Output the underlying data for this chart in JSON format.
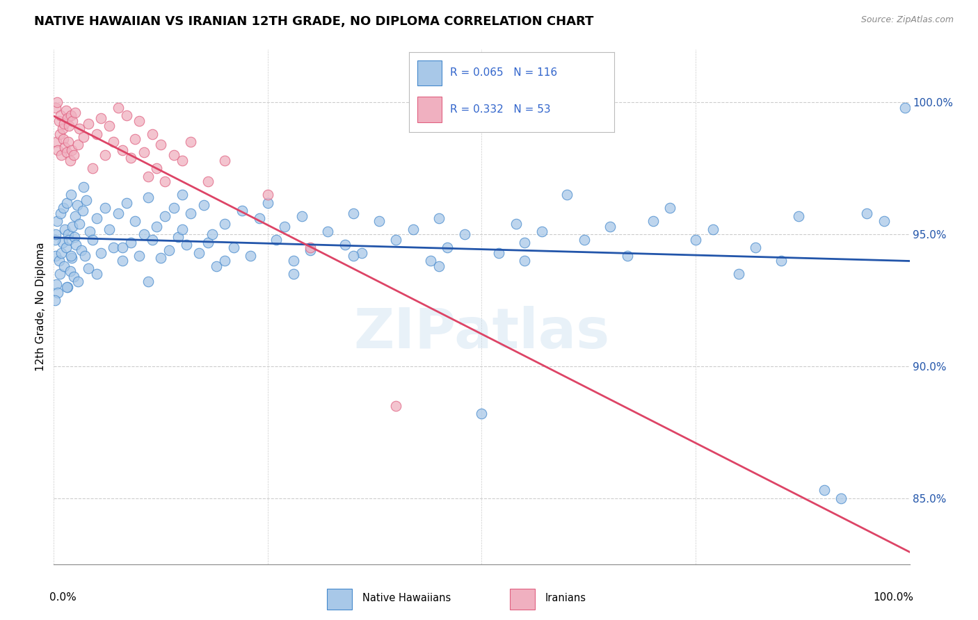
{
  "title": "NATIVE HAWAIIAN VS IRANIAN 12TH GRADE, NO DIPLOMA CORRELATION CHART",
  "source": "Source: ZipAtlas.com",
  "ylabel": "12th Grade, No Diploma",
  "watermark": "ZIPatlas",
  "blue_label": "Native Hawaiians",
  "pink_label": "Iranians",
  "blue_R": 0.065,
  "blue_N": 116,
  "pink_R": 0.332,
  "pink_N": 53,
  "blue_color": "#a8c8e8",
  "pink_color": "#f0b0c0",
  "blue_edge_color": "#4488cc",
  "pink_edge_color": "#e06080",
  "blue_line_color": "#2255aa",
  "pink_line_color": "#dd4466",
  "blue_scatter": [
    [
      0.2,
      94.2
    ],
    [
      0.3,
      93.1
    ],
    [
      0.4,
      95.5
    ],
    [
      0.5,
      92.8
    ],
    [
      0.6,
      94.0
    ],
    [
      0.7,
      93.5
    ],
    [
      0.8,
      95.8
    ],
    [
      0.9,
      94.3
    ],
    [
      1.0,
      94.7
    ],
    [
      1.1,
      96.0
    ],
    [
      1.2,
      93.8
    ],
    [
      1.3,
      95.2
    ],
    [
      1.4,
      94.5
    ],
    [
      1.5,
      96.2
    ],
    [
      1.6,
      93.0
    ],
    [
      1.7,
      95.0
    ],
    [
      1.8,
      94.8
    ],
    [
      1.9,
      93.6
    ],
    [
      2.0,
      96.5
    ],
    [
      2.1,
      94.1
    ],
    [
      2.2,
      95.3
    ],
    [
      2.3,
      93.4
    ],
    [
      2.4,
      94.9
    ],
    [
      2.5,
      95.7
    ],
    [
      2.6,
      94.6
    ],
    [
      2.7,
      96.1
    ],
    [
      2.8,
      93.2
    ],
    [
      3.0,
      95.4
    ],
    [
      3.2,
      94.4
    ],
    [
      3.4,
      95.9
    ],
    [
      3.6,
      94.2
    ],
    [
      3.8,
      96.3
    ],
    [
      4.0,
      93.7
    ],
    [
      4.2,
      95.1
    ],
    [
      4.5,
      94.8
    ],
    [
      5.0,
      95.6
    ],
    [
      5.5,
      94.3
    ],
    [
      6.0,
      96.0
    ],
    [
      6.5,
      95.2
    ],
    [
      7.0,
      94.5
    ],
    [
      7.5,
      95.8
    ],
    [
      8.0,
      94.0
    ],
    [
      8.5,
      96.2
    ],
    [
      9.0,
      94.7
    ],
    [
      9.5,
      95.5
    ],
    [
      10.0,
      94.2
    ],
    [
      10.5,
      95.0
    ],
    [
      11.0,
      96.4
    ],
    [
      11.5,
      94.8
    ],
    [
      12.0,
      95.3
    ],
    [
      12.5,
      94.1
    ],
    [
      13.0,
      95.7
    ],
    [
      13.5,
      94.4
    ],
    [
      14.0,
      96.0
    ],
    [
      14.5,
      94.9
    ],
    [
      15.0,
      95.2
    ],
    [
      15.5,
      94.6
    ],
    [
      16.0,
      95.8
    ],
    [
      17.0,
      94.3
    ],
    [
      17.5,
      96.1
    ],
    [
      18.0,
      94.7
    ],
    [
      18.5,
      95.0
    ],
    [
      19.0,
      93.8
    ],
    [
      20.0,
      95.4
    ],
    [
      21.0,
      94.5
    ],
    [
      22.0,
      95.9
    ],
    [
      23.0,
      94.2
    ],
    [
      24.0,
      95.6
    ],
    [
      25.0,
      96.2
    ],
    [
      26.0,
      94.8
    ],
    [
      27.0,
      95.3
    ],
    [
      28.0,
      94.0
    ],
    [
      29.0,
      95.7
    ],
    [
      30.0,
      94.4
    ],
    [
      32.0,
      95.1
    ],
    [
      34.0,
      94.6
    ],
    [
      35.0,
      95.8
    ],
    [
      36.0,
      94.3
    ],
    [
      38.0,
      95.5
    ],
    [
      40.0,
      94.8
    ],
    [
      42.0,
      95.2
    ],
    [
      44.0,
      94.0
    ],
    [
      45.0,
      95.6
    ],
    [
      46.0,
      94.5
    ],
    [
      48.0,
      95.0
    ],
    [
      50.0,
      88.2
    ],
    [
      52.0,
      94.3
    ],
    [
      54.0,
      95.4
    ],
    [
      55.0,
      94.7
    ],
    [
      57.0,
      95.1
    ],
    [
      60.0,
      96.5
    ],
    [
      62.0,
      94.8
    ],
    [
      65.0,
      95.3
    ],
    [
      67.0,
      94.2
    ],
    [
      70.0,
      95.5
    ],
    [
      72.0,
      96.0
    ],
    [
      75.0,
      94.8
    ],
    [
      77.0,
      95.2
    ],
    [
      80.0,
      93.5
    ],
    [
      82.0,
      94.5
    ],
    [
      85.0,
      94.0
    ],
    [
      87.0,
      95.7
    ],
    [
      90.0,
      85.3
    ],
    [
      92.0,
      85.0
    ],
    [
      95.0,
      95.8
    ],
    [
      97.0,
      95.5
    ],
    [
      99.5,
      99.8
    ],
    [
      0.1,
      94.8
    ],
    [
      0.15,
      92.5
    ],
    [
      0.25,
      95.0
    ],
    [
      1.5,
      93.0
    ],
    [
      2.0,
      94.2
    ],
    [
      3.5,
      96.8
    ],
    [
      5.0,
      93.5
    ],
    [
      8.0,
      94.5
    ],
    [
      11.0,
      93.2
    ],
    [
      15.0,
      96.5
    ],
    [
      20.0,
      94.0
    ],
    [
      28.0,
      93.5
    ],
    [
      35.0,
      94.2
    ],
    [
      45.0,
      93.8
    ],
    [
      55.0,
      94.0
    ]
  ],
  "pink_scatter": [
    [
      0.2,
      99.8
    ],
    [
      0.3,
      98.5
    ],
    [
      0.4,
      100.0
    ],
    [
      0.5,
      98.2
    ],
    [
      0.6,
      99.3
    ],
    [
      0.7,
      98.8
    ],
    [
      0.8,
      99.5
    ],
    [
      0.9,
      98.0
    ],
    [
      1.0,
      99.0
    ],
    [
      1.1,
      98.6
    ],
    [
      1.2,
      99.2
    ],
    [
      1.3,
      98.3
    ],
    [
      1.4,
      99.7
    ],
    [
      1.5,
      98.1
    ],
    [
      1.6,
      99.4
    ],
    [
      1.7,
      98.5
    ],
    [
      1.8,
      99.1
    ],
    [
      1.9,
      97.8
    ],
    [
      2.0,
      99.5
    ],
    [
      2.1,
      98.2
    ],
    [
      2.2,
      99.3
    ],
    [
      2.3,
      98.0
    ],
    [
      2.5,
      99.6
    ],
    [
      2.8,
      98.4
    ],
    [
      3.0,
      99.0
    ],
    [
      3.5,
      98.7
    ],
    [
      4.0,
      99.2
    ],
    [
      4.5,
      97.5
    ],
    [
      5.0,
      98.8
    ],
    [
      5.5,
      99.4
    ],
    [
      6.0,
      98.0
    ],
    [
      6.5,
      99.1
    ],
    [
      7.0,
      98.5
    ],
    [
      7.5,
      99.8
    ],
    [
      8.0,
      98.2
    ],
    [
      8.5,
      99.5
    ],
    [
      9.0,
      97.9
    ],
    [
      9.5,
      98.6
    ],
    [
      10.0,
      99.3
    ],
    [
      10.5,
      98.1
    ],
    [
      11.0,
      97.2
    ],
    [
      11.5,
      98.8
    ],
    [
      12.0,
      97.5
    ],
    [
      12.5,
      98.4
    ],
    [
      13.0,
      97.0
    ],
    [
      14.0,
      98.0
    ],
    [
      15.0,
      97.8
    ],
    [
      16.0,
      98.5
    ],
    [
      18.0,
      97.0
    ],
    [
      20.0,
      97.8
    ],
    [
      25.0,
      96.5
    ],
    [
      30.0,
      94.5
    ],
    [
      40.0,
      88.5
    ]
  ],
  "xlim": [
    0,
    100
  ],
  "ylim": [
    82.5,
    102.0
  ],
  "ytick_vals": [
    85.0,
    90.0,
    95.0,
    100.0
  ],
  "ytick_labels": [
    "85.0%",
    "90.0%",
    "95.0%",
    "100.0%"
  ],
  "xtick_vals": [
    0,
    25,
    50,
    75,
    100
  ],
  "grid_color": "#cccccc",
  "background_color": "#ffffff",
  "legend_R_N_color": "#3366cc",
  "title_fontsize": 13,
  "axis_label_fontsize": 11,
  "tick_fontsize": 11
}
